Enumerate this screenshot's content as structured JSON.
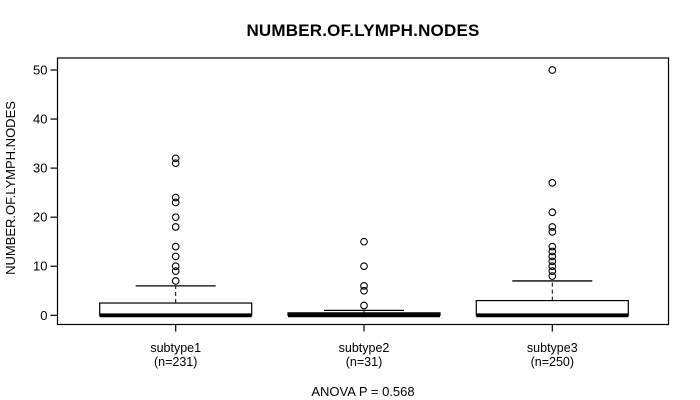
{
  "chart_data": {
    "type": "boxplot",
    "title": "NUMBER.OF.LYMPH.NODES",
    "ylabel": "NUMBER.OF.LYMPH.NODES",
    "xlabel": "",
    "annotation": "ANOVA P = 0.568",
    "ylim": [
      0,
      50
    ],
    "yticks": [
      0,
      10,
      20,
      30,
      40,
      50
    ],
    "grid": false,
    "legend": "none",
    "box_fill": "#ffffff",
    "line_color": "#000000",
    "groups": [
      {
        "label": "subtype1",
        "sublabel": "(n=231)",
        "n": 231,
        "median": 0,
        "q1": 0,
        "q3": 2.5,
        "whisker_low": 0,
        "whisker_high": 6,
        "outliers": [
          7,
          9,
          10,
          12,
          14,
          18,
          20,
          23,
          24,
          31,
          32
        ]
      },
      {
        "label": "subtype2",
        "sublabel": "(n=31)",
        "n": 31,
        "median": 0,
        "q1": 0,
        "q3": 0.5,
        "whisker_low": 0,
        "whisker_high": 1,
        "outliers": [
          2,
          5,
          6,
          10,
          15
        ]
      },
      {
        "label": "subtype3",
        "sublabel": "(n=250)",
        "n": 250,
        "median": 0,
        "q1": 0,
        "q3": 3,
        "whisker_low": 0,
        "whisker_high": 7,
        "outliers": [
          8,
          9,
          10,
          11,
          12,
          13,
          14,
          17,
          18,
          21,
          27,
          50
        ]
      }
    ]
  }
}
